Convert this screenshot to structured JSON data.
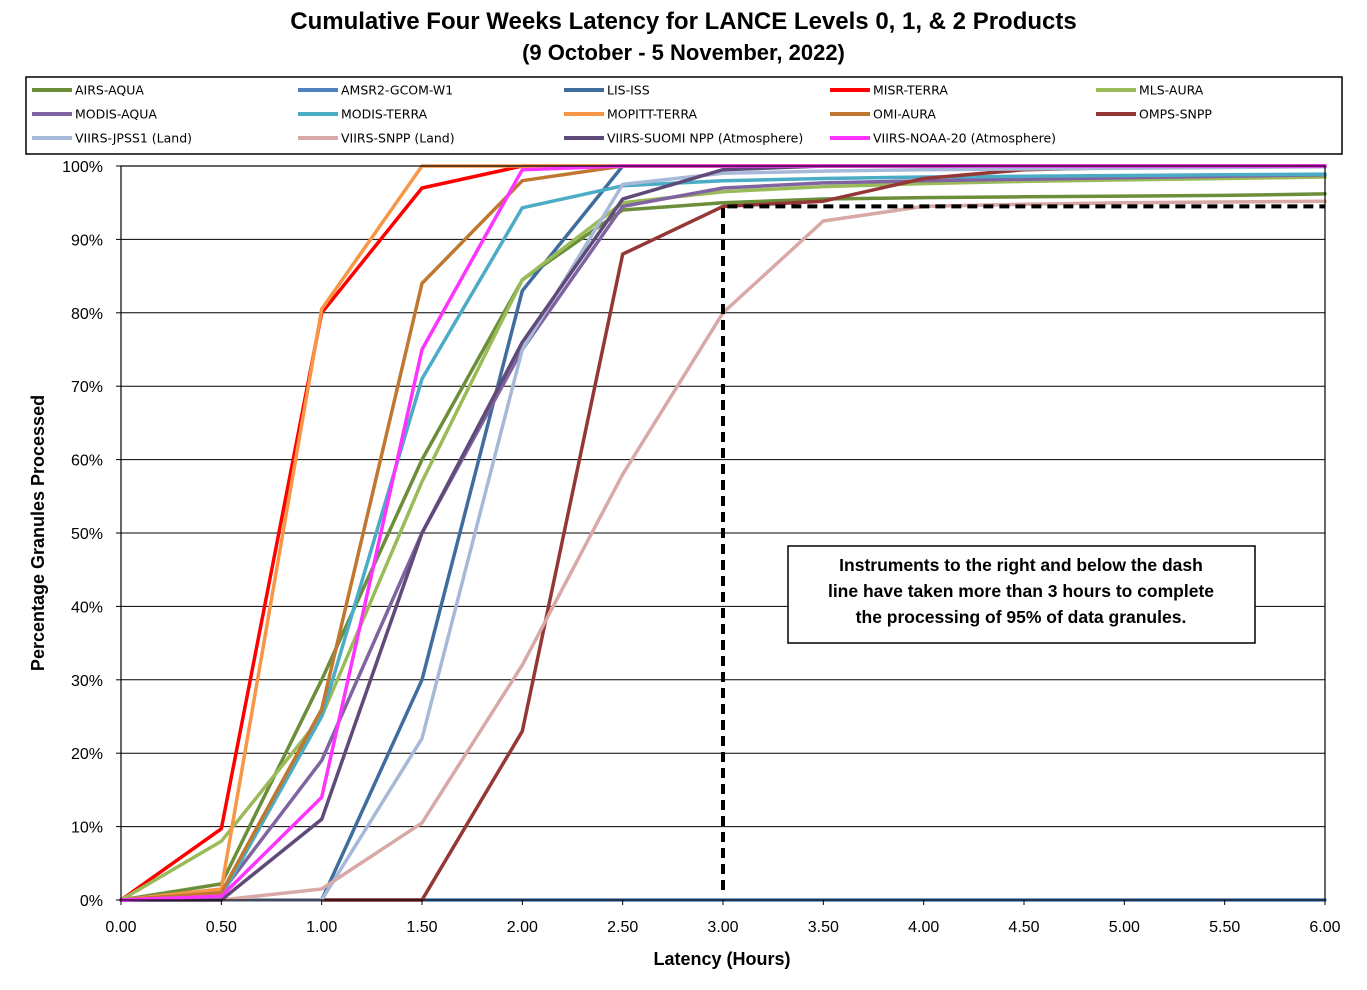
{
  "chart_data": {
    "type": "line",
    "title": "Cumulative Four Weeks Latency  for LANCE Levels 0, 1, & 2 Products",
    "subtitle": "(9  October   -  5  November,  2022)",
    "xlabel": "Latency (Hours)",
    "ylabel": "Percentage Granules Processed",
    "xlim": [
      0,
      6
    ],
    "ylim": [
      0,
      100
    ],
    "x": [
      0,
      0.5,
      1.0,
      1.5,
      2.0,
      2.5,
      3.0,
      3.5,
      4.0,
      4.5,
      5.0,
      5.5,
      6.0
    ],
    "x_ticks": [
      "0.00",
      "0.50",
      "1.00",
      "1.50",
      "2.00",
      "2.50",
      "3.00",
      "3.50",
      "4.00",
      "4.50",
      "5.00",
      "5.50",
      "6.00"
    ],
    "y_ticks": [
      "0%",
      "10%",
      "20%",
      "30%",
      "40%",
      "50%",
      "60%",
      "70%",
      "80%",
      "90%",
      "100%"
    ],
    "grid": "horizontal",
    "legend_position": "top",
    "series": [
      {
        "name": "AIRS-AQUA",
        "color": "#6b8e3a",
        "values": [
          0,
          2.2,
          30,
          60,
          84.5,
          94,
          95,
          95.5,
          95.7,
          95.8,
          95.9,
          96,
          96.2
        ]
      },
      {
        "name": "AMSR2-GCOM-W1",
        "color": "#4f81bd",
        "values": [
          0,
          0,
          0,
          0,
          0,
          0,
          0,
          0,
          0,
          0,
          0,
          0,
          0
        ]
      },
      {
        "name": "LIS-ISS",
        "color": "#3f6e9e",
        "values": [
          0,
          0,
          0,
          30,
          83,
          100,
          100,
          100,
          100,
          100,
          100,
          100,
          100
        ]
      },
      {
        "name": "MISR-TERRA",
        "color": "#ff0000",
        "values": [
          0,
          9.7,
          80,
          97,
          100,
          100,
          100,
          100,
          100,
          100,
          100,
          100,
          100
        ]
      },
      {
        "name": "MLS-AURA",
        "color": "#9bbb59",
        "values": [
          0,
          8,
          25,
          57,
          84.5,
          95,
          96.5,
          97.2,
          97.6,
          97.9,
          98.1,
          98.3,
          98.5
        ]
      },
      {
        "name": "MODIS-AQUA",
        "color": "#8064a2",
        "values": [
          0,
          1,
          19,
          50,
          75,
          94.5,
          97,
          97.7,
          98,
          98.2,
          98.4,
          98.6,
          98.8
        ]
      },
      {
        "name": "MODIS-TERRA",
        "color": "#4bacc6",
        "values": [
          0,
          0.5,
          25,
          71,
          94.3,
          97.3,
          98,
          98.3,
          98.5,
          98.6,
          98.7,
          98.8,
          98.9
        ]
      },
      {
        "name": "MOPITT-TERRA",
        "color": "#f79646",
        "values": [
          0,
          1.5,
          80.5,
          100,
          100,
          100,
          100,
          100,
          100,
          100,
          100,
          100,
          100
        ]
      },
      {
        "name": "OMI-AURA",
        "color": "#c07830",
        "values": [
          0,
          1,
          26,
          84,
          98,
          100,
          100,
          100,
          100,
          100,
          100,
          100,
          100
        ]
      },
      {
        "name": "OMPS-SNPP",
        "color": "#953735",
        "values": [
          0,
          0,
          0,
          0,
          23,
          88,
          94.5,
          95.2,
          98.3,
          99.5,
          99.8,
          99.9,
          100
        ]
      },
      {
        "name": "VIIRS-JPSS1 (Land)",
        "color": "#a6b9d8",
        "values": [
          0,
          0,
          0,
          22,
          75,
          97.5,
          99,
          99.3,
          99.5,
          99.6,
          99.7,
          99.8,
          99.9
        ]
      },
      {
        "name": "VIIRS-SNPP (Land)",
        "color": "#d8a9a6",
        "values": [
          0,
          0,
          1.5,
          10.5,
          32,
          58,
          80,
          92.5,
          94.5,
          94.8,
          95,
          95.1,
          95.2
        ]
      },
      {
        "name": "VIIRS-SUOMI NPP (Atmosphere)",
        "color": "#5f4a7a",
        "values": [
          0,
          0,
          11,
          50,
          76,
          95.5,
          99.5,
          100,
          100,
          100,
          100,
          100,
          100
        ]
      },
      {
        "name": "VIIRS-NOAA-20 (Atmosphere)",
        "color": "#ff33ff",
        "values": [
          0,
          0.5,
          14,
          75,
          99.5,
          100,
          100,
          100,
          100,
          100,
          100,
          100,
          100
        ]
      }
    ],
    "annotation": {
      "lines": [
        "Instruments to the right and below the dash",
        "line have taken more than 3 hours to complete",
        "the processing of 95% of data granules."
      ],
      "threshold_x": 3.0,
      "threshold_y": 94.5
    }
  }
}
